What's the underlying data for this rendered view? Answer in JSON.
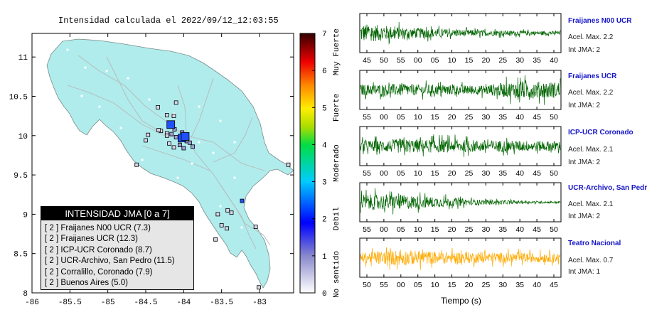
{
  "map": {
    "title": "Intensidad calculada el 2022/09/12_12:03:55",
    "x_ticks": [
      "-86",
      "-85.5",
      "-85",
      "-84.5",
      "-84",
      "-83.5",
      "-83"
    ],
    "y_ticks": [
      "11",
      "10.5",
      "10",
      "9.5",
      "9",
      "8.5",
      "8"
    ],
    "colorbar_ticks": [
      "0",
      "1",
      "2",
      "3",
      "4",
      "5",
      "6",
      "7"
    ],
    "colorbar_labels": [
      "No sentido",
      "Debil",
      "Moderado",
      "Fuerte",
      "Muy Fuerte"
    ],
    "legend": {
      "title": "INTENSIDAD JMA [0 a 7]",
      "items": [
        "[ 2 ]  Fraijanes N00 UCR (7.3)",
        "[ 2 ]  Fraijanes UCR (12.3)",
        "[ 2 ]  ICP-UCR Coronado (8.7)",
        "[ 2 ]  UCR-Archivo, San Pedro (11.5)",
        "[ 2 ]  Corralillo, Coronado (7.9)",
        "[ 2 ]  Buenos Aires (5.0)"
      ]
    },
    "colors": {
      "land": "#b0ecec",
      "sea": "#ffffff",
      "roads": "#b4b4b4",
      "intensity_2": "#1e50ff"
    }
  },
  "chart_data": [
    {
      "type": "scatter",
      "title": "Intensidad calculada el 2022/09/12_12:03:55",
      "xlim": [
        -86,
        -82.55
      ],
      "ylim": [
        8,
        11.3
      ],
      "colorbar": {
        "range": [
          0,
          7
        ],
        "ticks": [
          0,
          1,
          2,
          3,
          4,
          5,
          6,
          7
        ],
        "labels": [
          "No sentido",
          "Debil",
          "Moderado",
          "Fuerte",
          "Muy Fuerte"
        ]
      },
      "big_markers": [
        {
          "lon": -84.17,
          "lat": 10.14,
          "intensity": 2
        },
        {
          "lon": -84.02,
          "lat": 9.97,
          "intensity": 2
        },
        {
          "lon": -83.98,
          "lat": 9.99,
          "intensity": 2
        }
      ],
      "small_markers": [
        {
          "lon": -84.1,
          "lat": 10.42,
          "intensity": 0.5
        },
        {
          "lon": -84.34,
          "lat": 10.36,
          "intensity": 0.5
        },
        {
          "lon": -84.13,
          "lat": 10.25,
          "intensity": 0.5
        },
        {
          "lon": -84.22,
          "lat": 10.26,
          "intensity": 0.5
        },
        {
          "lon": -84.12,
          "lat": 10.08,
          "intensity": 1
        },
        {
          "lon": -84.22,
          "lat": 10.03,
          "intensity": 0.5
        },
        {
          "lon": -84.3,
          "lat": 10.06,
          "intensity": 0.5
        },
        {
          "lon": -84.16,
          "lat": 10.02,
          "intensity": 1
        },
        {
          "lon": -84.22,
          "lat": 10.0,
          "intensity": 0.5
        },
        {
          "lon": -84.1,
          "lat": 9.98,
          "intensity": 1
        },
        {
          "lon": -84.02,
          "lat": 10.04,
          "intensity": 1
        },
        {
          "lon": -84.05,
          "lat": 9.94,
          "intensity": 1
        },
        {
          "lon": -83.96,
          "lat": 9.93,
          "intensity": 1
        },
        {
          "lon": -83.92,
          "lat": 9.91,
          "intensity": 1
        },
        {
          "lon": -83.88,
          "lat": 9.86,
          "intensity": 1
        },
        {
          "lon": -84.05,
          "lat": 9.88,
          "intensity": 1
        },
        {
          "lon": -84.13,
          "lat": 9.85,
          "intensity": 0.5
        },
        {
          "lon": -84.19,
          "lat": 9.9,
          "intensity": 0.5
        },
        {
          "lon": -84.0,
          "lat": 9.84,
          "intensity": 1
        },
        {
          "lon": -84.47,
          "lat": 10.01,
          "intensity": 0.5
        },
        {
          "lon": -84.5,
          "lat": 9.94,
          "intensity": 0.5
        },
        {
          "lon": -84.33,
          "lat": 10.07,
          "intensity": 0.5
        },
        {
          "lon": -84.62,
          "lat": 9.63,
          "intensity": 0.5
        },
        {
          "lon": -82.62,
          "lat": 9.63,
          "intensity": 0.5
        },
        {
          "lon": -83.23,
          "lat": 9.17,
          "intensity": 2
        },
        {
          "lon": -83.55,
          "lat": 9.0,
          "intensity": 0.5
        },
        {
          "lon": -83.42,
          "lat": 9.05,
          "intensity": 0.5
        },
        {
          "lon": -83.37,
          "lat": 9.02,
          "intensity": 0.5
        },
        {
          "lon": -83.5,
          "lat": 8.86,
          "intensity": 0.5
        },
        {
          "lon": -83.43,
          "lat": 8.82,
          "intensity": 0.5
        },
        {
          "lon": -83.58,
          "lat": 8.68,
          "intensity": 0.5
        },
        {
          "lon": -83.05,
          "lat": 8.84,
          "intensity": 0.5
        },
        {
          "lon": -83.01,
          "lat": 8.07,
          "intensity": 0.5
        }
      ]
    },
    {
      "type": "line",
      "title": "",
      "xlabel": "Tiempo (s)",
      "series": [
        {
          "name": "Fraijanes N00 UCR",
          "acc_label": "Acel. Max. 2.2",
          "jma_label": "Int JMA: 2",
          "color": "#006400",
          "x_ticks": [
            "45",
            "50",
            "55",
            "00",
            "05",
            "10",
            "15",
            "20",
            "25",
            "30",
            "35",
            "40"
          ],
          "amplitude_envelope": [
            0.95,
            0.55,
            0.35,
            0.25,
            0.18
          ]
        },
        {
          "name": "Fraijanes UCR",
          "acc_label": "Acel. Max. 2.2",
          "jma_label": "Int JMA: 2",
          "color": "#006400",
          "x_ticks": [
            "55",
            "00",
            "05",
            "10",
            "15",
            "20",
            "25",
            "30",
            "35",
            "40",
            "45",
            "50"
          ],
          "amplitude_envelope": [
            0.55,
            0.6,
            0.5,
            0.45,
            0.9,
            0.8
          ]
        },
        {
          "name": "ICP-UCR Coronado",
          "acc_label": "Acel. Max. 2.1",
          "jma_label": "Int JMA: 2",
          "color": "#006400",
          "x_ticks": [
            "55",
            "00",
            "05",
            "10",
            "15",
            "20",
            "25",
            "30",
            "35",
            "40",
            "45",
            "50"
          ],
          "amplitude_envelope": [
            0.5,
            0.7,
            0.65,
            0.6,
            0.55,
            0.5
          ]
        },
        {
          "name": "UCR-Archivo, San Pedro",
          "acc_label": "Acel. Max. 2.1",
          "jma_label": "Int JMA: 2",
          "color": "#006400",
          "x_ticks": [
            "55",
            "00",
            "05",
            "10",
            "15",
            "20",
            "25",
            "30",
            "35",
            "40",
            "45",
            "50"
          ],
          "amplitude_envelope": [
            0.8,
            0.75,
            0.5,
            0.25,
            0.15,
            0.1
          ]
        },
        {
          "name": "Teatro Nacional",
          "acc_label": "Acel. Max. 0.7",
          "jma_label": "Int JMA: 1",
          "color": "#ffaa00",
          "x_ticks": [
            "50",
            "55",
            "00",
            "05",
            "10",
            "15",
            "20",
            "25",
            "30",
            "35",
            "40",
            "45"
          ],
          "amplitude_envelope": [
            0.5,
            0.8,
            0.6,
            0.55,
            0.5,
            0.45
          ]
        }
      ]
    }
  ]
}
